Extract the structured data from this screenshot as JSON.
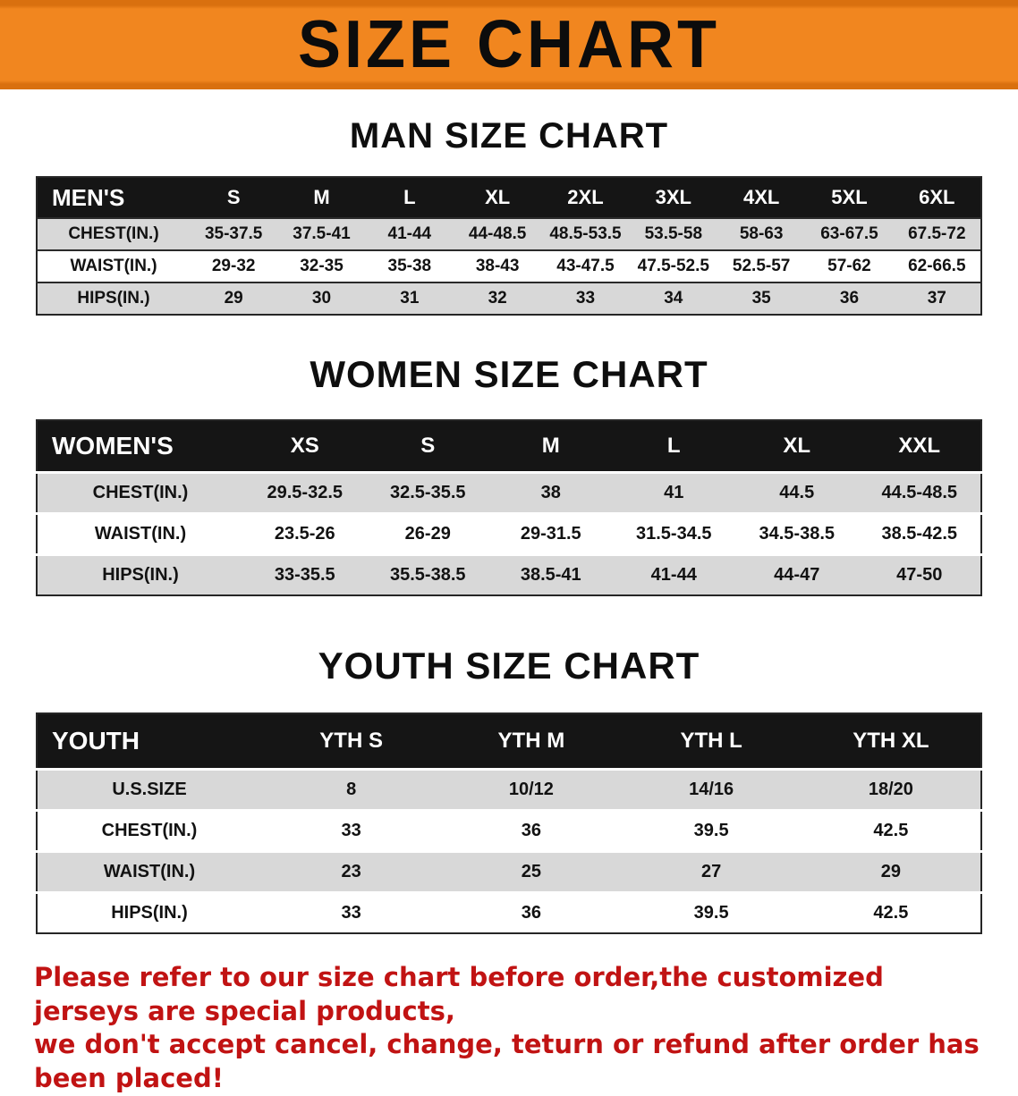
{
  "banner": {
    "title": "SIZE CHART"
  },
  "men": {
    "heading": "MAN SIZE CHART",
    "header": [
      "MEN'S",
      "S",
      "M",
      "L",
      "XL",
      "2XL",
      "3XL",
      "4XL",
      "5XL",
      "6XL"
    ],
    "rows": [
      [
        "CHEST(IN.)",
        "35-37.5",
        "37.5-41",
        "41-44",
        "44-48.5",
        "48.5-53.5",
        "53.5-58",
        "58-63",
        "63-67.5",
        "67.5-72"
      ],
      [
        "WAIST(IN.)",
        "29-32",
        "32-35",
        "35-38",
        "38-43",
        "43-47.5",
        "47.5-52.5",
        "52.5-57",
        "57-62",
        "62-66.5"
      ],
      [
        "HIPS(IN.)",
        "29",
        "30",
        "31",
        "32",
        "33",
        "34",
        "35",
        "36",
        "37"
      ]
    ]
  },
  "women": {
    "heading": "WOMEN SIZE CHART",
    "header": [
      "WOMEN'S",
      "XS",
      "S",
      "M",
      "L",
      "XL",
      "XXL"
    ],
    "rows": [
      [
        "CHEST(IN.)",
        "29.5-32.5",
        "32.5-35.5",
        "38",
        "41",
        "44.5",
        "44.5-48.5"
      ],
      [
        "WAIST(IN.)",
        "23.5-26",
        "26-29",
        "29-31.5",
        "31.5-34.5",
        "34.5-38.5",
        "38.5-42.5"
      ],
      [
        "HIPS(IN.)",
        "33-35.5",
        "35.5-38.5",
        "38.5-41",
        "41-44",
        "44-47",
        "47-50"
      ]
    ]
  },
  "youth": {
    "heading": "YOUTH SIZE CHART",
    "header": [
      "YOUTH",
      "YTH S",
      "YTH M",
      "YTH L",
      "YTH XL"
    ],
    "rows": [
      [
        "U.S.SIZE",
        "8",
        "10/12",
        "14/16",
        "18/20"
      ],
      [
        "CHEST(IN.)",
        "33",
        "36",
        "39.5",
        "42.5"
      ],
      [
        "WAIST(IN.)",
        "23",
        "25",
        "27",
        "29"
      ],
      [
        "HIPS(IN.)",
        "33",
        "36",
        "39.5",
        "42.5"
      ]
    ]
  },
  "footer": {
    "line1": "Please refer to our size chart before order,the customized jerseys are special products,",
    "line2": "we don't accept cancel, change, teturn or refund after order has been placed!"
  },
  "colors": {
    "banner_bg": "#f1861f",
    "banner_edge": "#d9700f",
    "table_header_bg": "#151515",
    "row_stripe": "#d8d8d8",
    "footer_text": "#c11313"
  }
}
